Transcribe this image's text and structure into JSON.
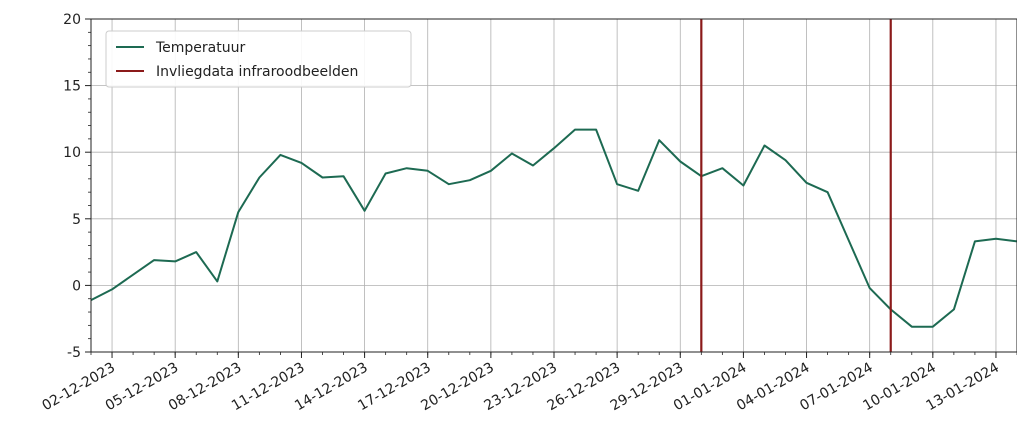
{
  "chart_data": {
    "type": "line",
    "x_start": "2023-12-01",
    "x_end": "2024-01-14",
    "ylim": [
      -5,
      20
    ],
    "yticks": [
      -5,
      0,
      5,
      10,
      15,
      20
    ],
    "y_minor_step": 1,
    "xtick_labels": [
      "02-12-2023",
      "05-12-2023",
      "08-12-2023",
      "11-12-2023",
      "14-12-2023",
      "17-12-2023",
      "20-12-2023",
      "23-12-2023",
      "26-12-2023",
      "29-12-2023",
      "01-01-2024",
      "04-01-2024",
      "07-01-2024",
      "10-01-2024",
      "13-01-2024"
    ],
    "grid": true,
    "legend_position": "upper-left",
    "series": [
      {
        "name": "Temperatuur",
        "color": "#1d6a52",
        "x": [
          "2023-12-01",
          "2023-12-02",
          "2023-12-03",
          "2023-12-04",
          "2023-12-05",
          "2023-12-06",
          "2023-12-07",
          "2023-12-08",
          "2023-12-09",
          "2023-12-10",
          "2023-12-11",
          "2023-12-12",
          "2023-12-13",
          "2023-12-14",
          "2023-12-15",
          "2023-12-16",
          "2023-12-17",
          "2023-12-18",
          "2023-12-19",
          "2023-12-20",
          "2023-12-21",
          "2023-12-22",
          "2023-12-23",
          "2023-12-24",
          "2023-12-25",
          "2023-12-26",
          "2023-12-27",
          "2023-12-28",
          "2023-12-29",
          "2023-12-30",
          "2023-12-31",
          "2024-01-01",
          "2024-01-02",
          "2024-01-03",
          "2024-01-04",
          "2024-01-05",
          "2024-01-06",
          "2024-01-07",
          "2024-01-08",
          "2024-01-09",
          "2024-01-10",
          "2024-01-11",
          "2024-01-12",
          "2024-01-13",
          "2024-01-14"
        ],
        "values": [
          -1.1,
          -0.3,
          0.8,
          1.9,
          1.8,
          2.5,
          0.3,
          5.5,
          8.1,
          9.8,
          9.2,
          8.1,
          8.2,
          5.6,
          8.4,
          8.8,
          8.6,
          7.6,
          7.9,
          8.6,
          9.9,
          9.0,
          10.3,
          11.7,
          11.7,
          7.6,
          7.1,
          10.9,
          9.3,
          8.2,
          8.8,
          7.5,
          10.5,
          9.4,
          7.7,
          7.0,
          3.4,
          -0.2,
          -1.8,
          -3.1,
          -3.1,
          -1.8,
          3.3,
          3.5,
          3.3
        ]
      },
      {
        "name": "Invliegdata infraroodbeelden",
        "color": "#8b1a1a",
        "dates": [
          "2023-12-30",
          "2024-01-08"
        ]
      }
    ]
  }
}
